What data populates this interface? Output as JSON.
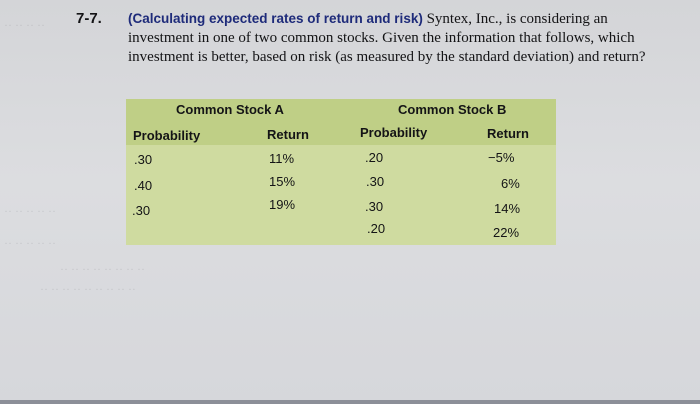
{
  "problem": {
    "number": "7-7.",
    "heading": "(Calculating expected rates of return and risk)",
    "text": "Syntex, Inc., is considering an investment in one of two common stocks. Given the information that follows, which investment is better, based on risk (as measured by the standard deviation) and return?"
  },
  "table": {
    "stock_a": {
      "title": "Common Stock A",
      "col_probability": "Probability",
      "col_return": "Return",
      "rows": [
        {
          "probability": ".30",
          "return": "11%"
        },
        {
          "probability": ".40",
          "return": "15%"
        },
        {
          "probability": ".30",
          "return": "19%"
        }
      ]
    },
    "stock_b": {
      "title": "Common Stock B",
      "col_probability": "Probability",
      "col_return": "Return",
      "rows": [
        {
          "probability": ".20",
          "return": "−5%"
        },
        {
          "probability": ".30",
          "return": "6%"
        },
        {
          "probability": ".30",
          "return": "14%"
        },
        {
          "probability": ".20",
          "return": "22%"
        }
      ]
    }
  },
  "colors": {
    "table_background": "#cfdba0",
    "table_header": "#bfcf86",
    "heading_text": "#1e2b7a",
    "page_background": "#d8d9dc"
  }
}
